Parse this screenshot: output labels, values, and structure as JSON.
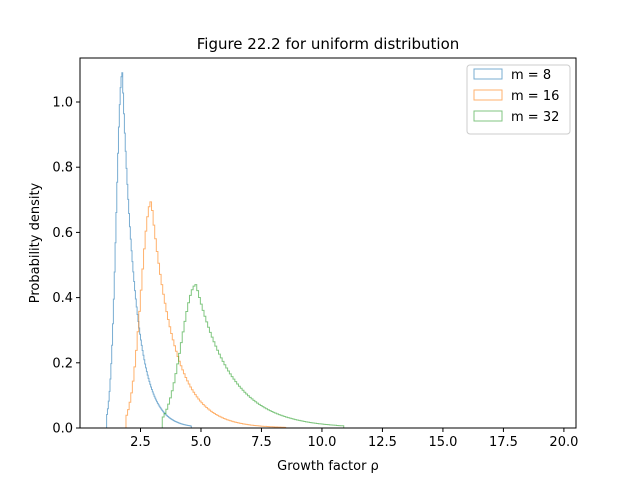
{
  "chart_data": {
    "type": "histogram-step",
    "title": "Figure 22.2 for uniform distribution",
    "xlabel": "Growth factor ρ",
    "ylabel": "Probability density",
    "xlim": [
      0.0,
      20.5
    ],
    "ylim": [
      0.0,
      1.135
    ],
    "xticks": [
      2.5,
      5.0,
      7.5,
      10.0,
      12.5,
      15.0,
      17.5,
      20.0
    ],
    "xtick_labels": [
      "2.5",
      "5.0",
      "7.5",
      "10.0",
      "12.5",
      "15.0",
      "17.5",
      "20.0"
    ],
    "yticks": [
      0.0,
      0.2,
      0.4,
      0.6,
      0.8,
      1.0
    ],
    "ytick_labels": [
      "0.0",
      "0.2",
      "0.4",
      "0.6",
      "0.8",
      "1.0"
    ],
    "grid": false,
    "legend_position": "top-right",
    "series": [
      {
        "name": "m = 8",
        "color": "#1f77b4",
        "shape": {
          "start": 1.1,
          "peak_x": 1.75,
          "peak_y": 1.09,
          "rise_width": 0.35,
          "decay": 0.55,
          "end": 4.6
        }
      },
      {
        "name": "m = 16",
        "color": "#ff7f0e",
        "shape": {
          "start": 1.9,
          "peak_x": 2.95,
          "peak_y": 0.695,
          "rise_width": 0.6,
          "decay": 0.95,
          "end": 8.5
        }
      },
      {
        "name": "m = 32",
        "color": "#2ca02c",
        "shape": {
          "start": 3.4,
          "peak_x": 4.8,
          "peak_y": 0.44,
          "rise_width": 0.85,
          "decay": 1.45,
          "end": 10.9
        }
      }
    ]
  }
}
